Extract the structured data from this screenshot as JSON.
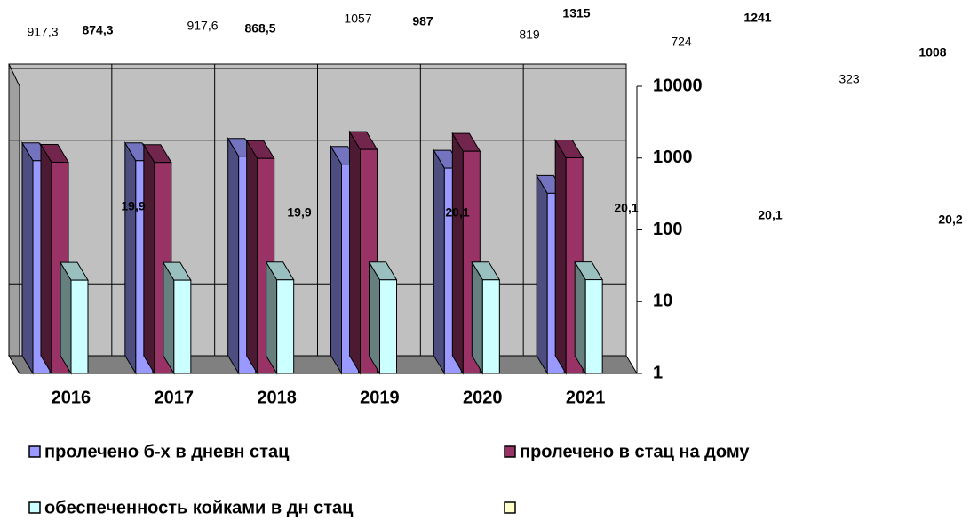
{
  "chart_data": {
    "type": "bar3d",
    "categories": [
      "2016",
      "2017",
      "2018",
      "2019",
      "2020",
      "2021"
    ],
    "series": [
      {
        "name": "пролечено б-х в дневн стац",
        "color": "#9999ff",
        "values": [
          917.3,
          917.6,
          1057,
          819,
          724,
          323
        ],
        "value_labels": [
          "917,3",
          "917,6",
          "1057",
          "819",
          "724",
          "323"
        ]
      },
      {
        "name": "пролечено в стац на дому",
        "color": "#993366",
        "values": [
          874.3,
          868.5,
          987,
          1315,
          1241,
          1008
        ],
        "value_labels": [
          "874,3",
          "868,5",
          "987",
          "1315",
          "1241",
          "1008"
        ]
      },
      {
        "name": "обеспеченность койками в дн стац",
        "color": "#ccffff",
        "values": [
          19.9,
          19.9,
          20.1,
          20.1,
          20.1,
          20.2
        ],
        "value_labels": [
          "19,9",
          "19,9",
          "20,1",
          "20,1",
          "20,1",
          "20,2"
        ]
      }
    ],
    "log_scale": true,
    "ylim": [
      1,
      10000
    ],
    "yticks": [
      1,
      10,
      100,
      1000,
      10000
    ],
    "grid": true,
    "legend": "bottom"
  }
}
